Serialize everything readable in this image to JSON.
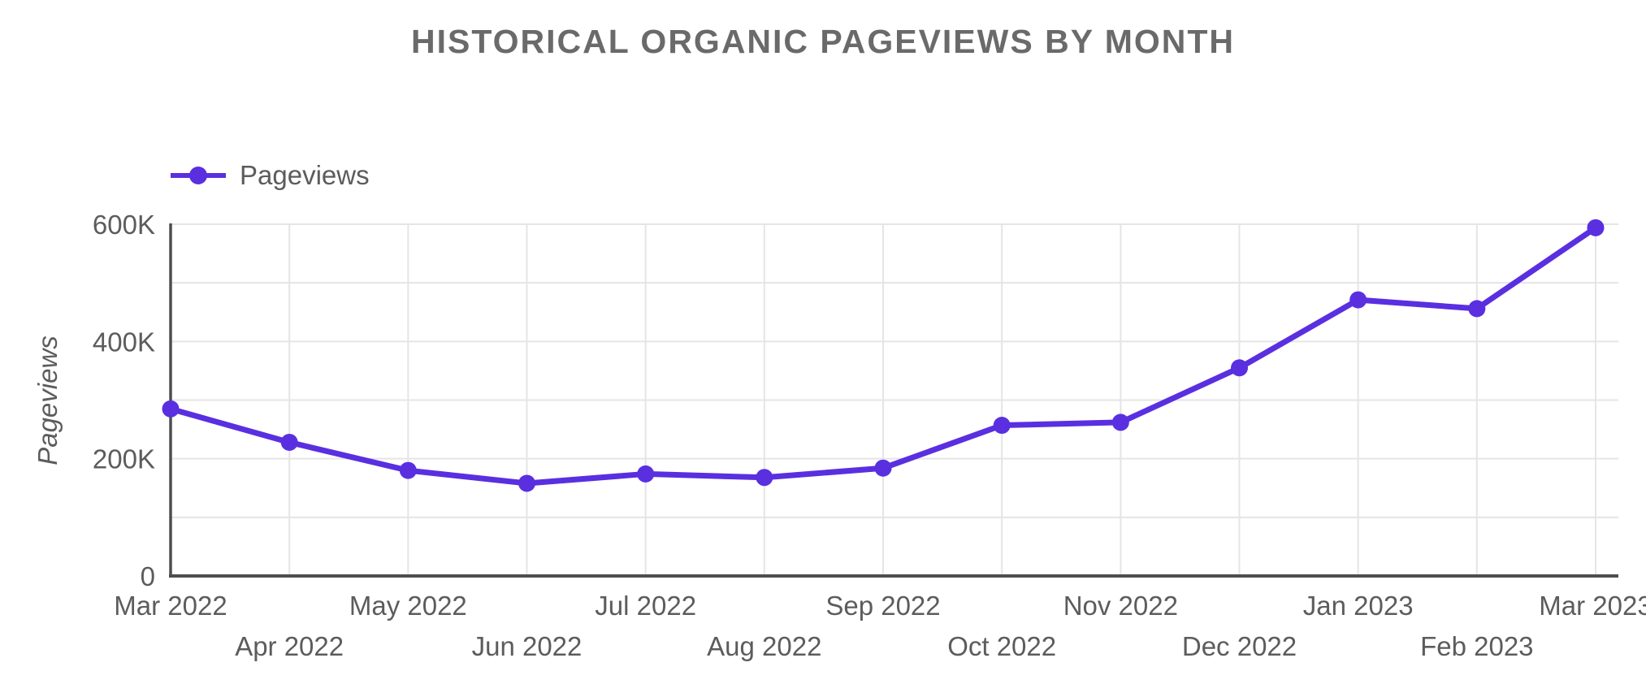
{
  "title": "HISTORICAL ORGANIC PAGEVIEWS BY MONTH",
  "legend": {
    "position": "top-left",
    "items": [
      {
        "label": "Pageviews",
        "marker": "line-with-circle",
        "color": "#5A2FE0"
      }
    ]
  },
  "colors": {
    "series_line": "#5A2FE0",
    "title_text": "#6A6A6A",
    "tick_text": "#5C5C5C",
    "axis_line": "#4E4E4E",
    "gridline": "#E5E5E5",
    "background": "#FFFFFF"
  },
  "chart_data": {
    "type": "line",
    "title": "HISTORICAL ORGANIC PAGEVIEWS BY MONTH",
    "xlabel": "",
    "ylabel": "Pageviews",
    "categories": [
      "Mar 2022",
      "Apr 2022",
      "May 2022",
      "Jun 2022",
      "Jul 2022",
      "Aug 2022",
      "Sep 2022",
      "Oct 2022",
      "Nov 2022",
      "Dec 2022",
      "Jan 2023",
      "Feb 2023",
      "Mar 2023"
    ],
    "series": [
      {
        "name": "Pageviews",
        "values": [
          285000,
          228000,
          180000,
          158000,
          174000,
          168000,
          184000,
          257000,
          262000,
          355000,
          471000,
          456000,
          594000
        ]
      }
    ],
    "ylim": [
      0,
      600000
    ],
    "y_tick_values": [
      0,
      200000,
      400000,
      600000
    ],
    "y_tick_labels": [
      "0",
      "200K",
      "400K",
      "600K"
    ],
    "grid_interval": 100000,
    "grid": true,
    "legend_position": "top-left",
    "marker": "circle",
    "x_label_layout": "staggered-two-rows"
  }
}
